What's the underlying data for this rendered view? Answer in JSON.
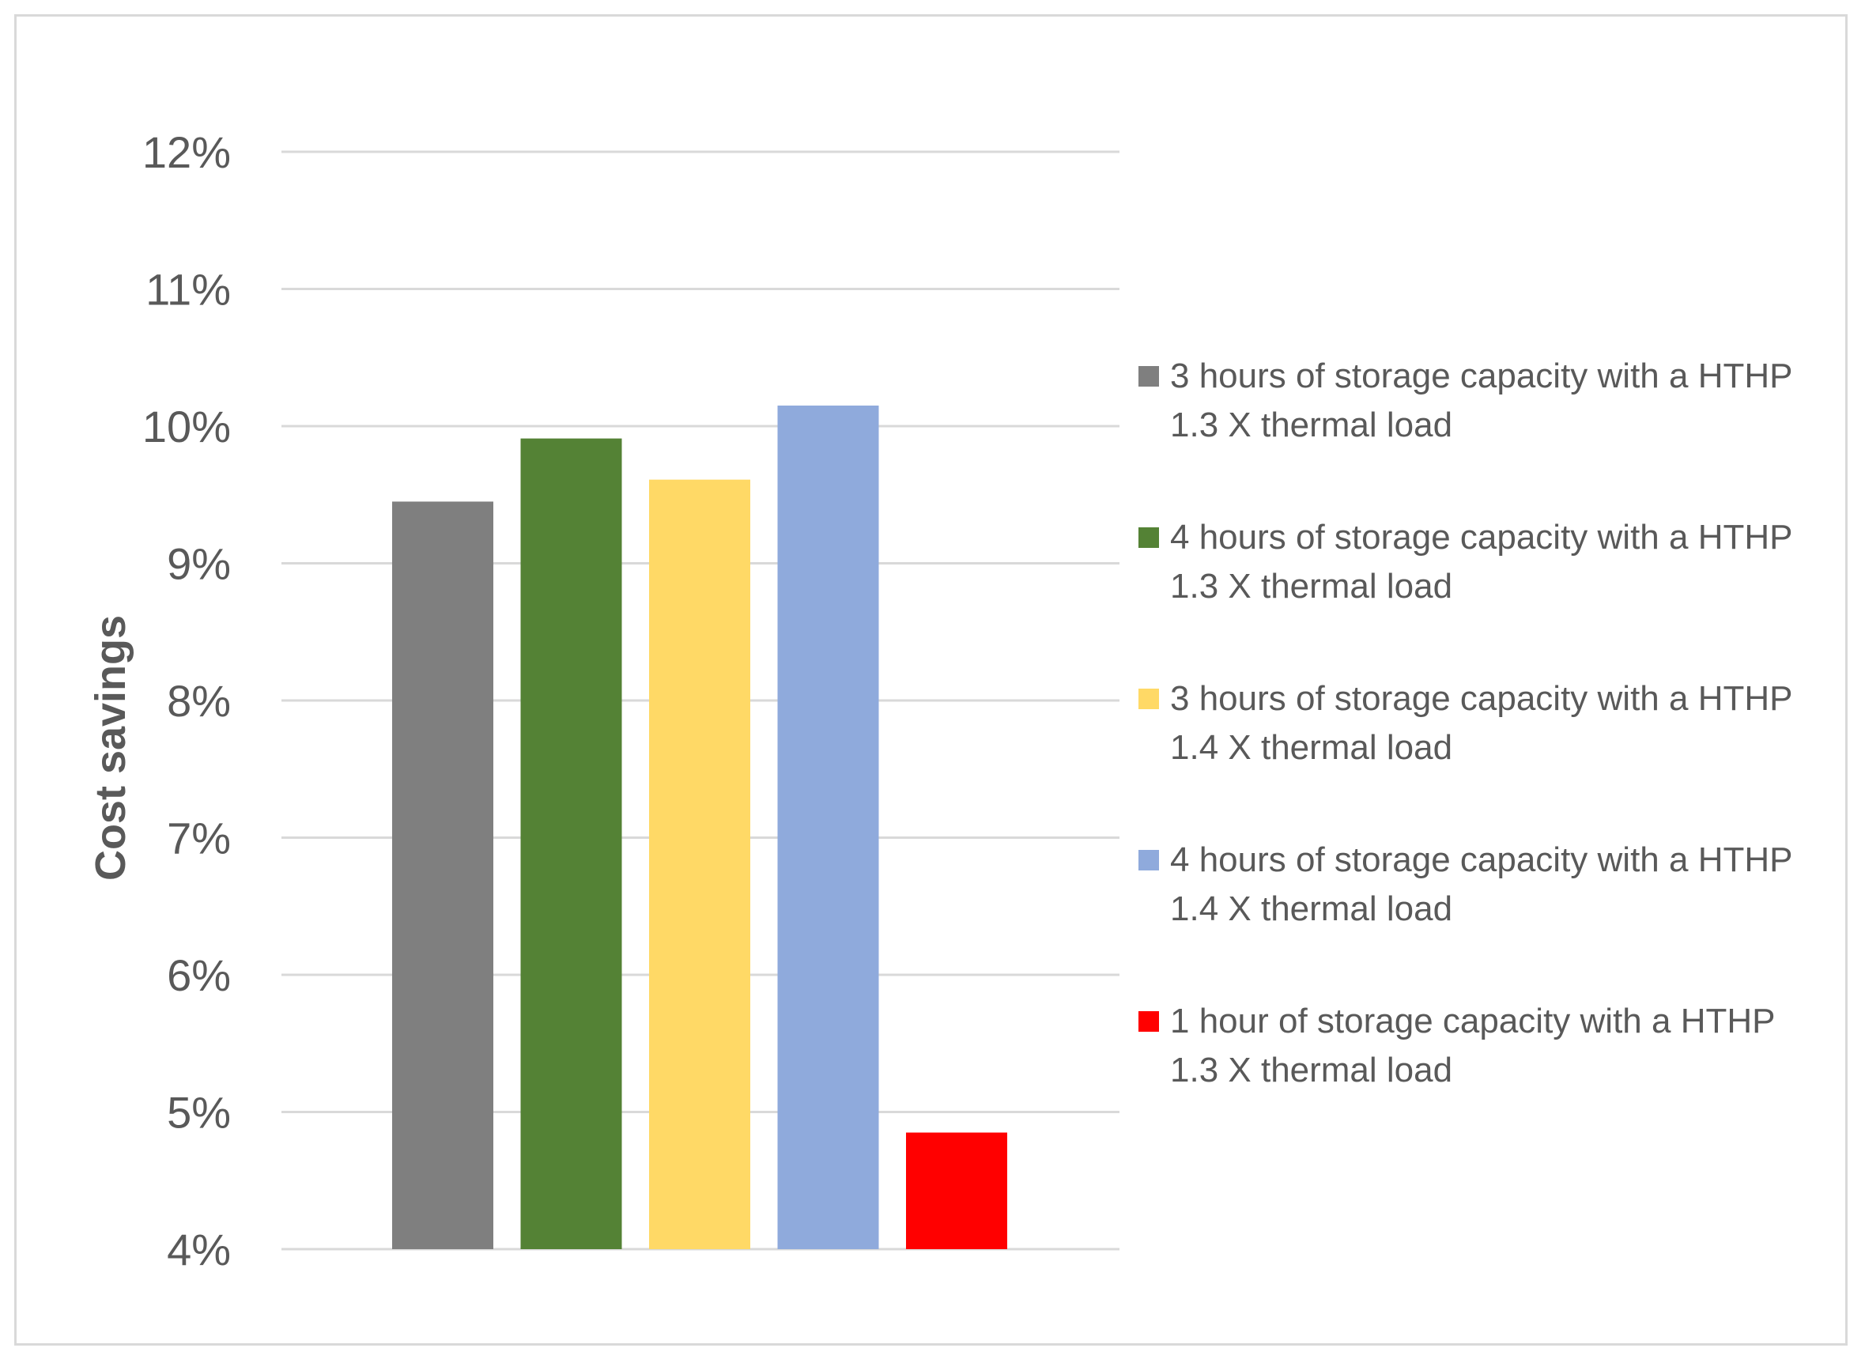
{
  "chart_data": {
    "type": "bar",
    "title": "",
    "xlabel": "",
    "ylabel": "Cost savings",
    "ylim": [
      4,
      12
    ],
    "yticks": [
      "4%",
      "5%",
      "6%",
      "7%",
      "8%",
      "9%",
      "10%",
      "11%",
      "12%"
    ],
    "grid": true,
    "legend_position": "right",
    "series": [
      {
        "name": "3 hours of storage capacity with a HTHP 1.3 X thermal load",
        "line1": "3 hours of storage capacity with a HTHP",
        "line2": "1.3 X thermal load",
        "value": 9.45,
        "color": "#7f7f7f"
      },
      {
        "name": "4 hours of storage capacity with a HTHP 1.3 X thermal load",
        "line1": "4 hours of storage capacity with a HTHP",
        "line2": "1.3 X thermal load",
        "value": 9.91,
        "color": "#548235"
      },
      {
        "name": "3 hours of storage capacity with a HTHP 1.4 X thermal load",
        "line1": "3 hours of storage capacity with a HTHP",
        "line2": "1.4 X thermal load",
        "value": 9.61,
        "color": "#ffd966"
      },
      {
        "name": "4 hours of storage capacity with a HTHP 1.4 X thermal load",
        "line1": "4 hours of storage capacity with a HTHP",
        "line2": "1.4 X thermal load",
        "value": 10.15,
        "color": "#8faadc"
      },
      {
        "name": "1 hour of storage capacity with a HTHP 1.3 X thermal load",
        "line1": "1 hour of storage capacity with a HTHP",
        "line2": "1.3 X thermal load",
        "value": 4.85,
        "color": "#ff0000"
      }
    ]
  }
}
